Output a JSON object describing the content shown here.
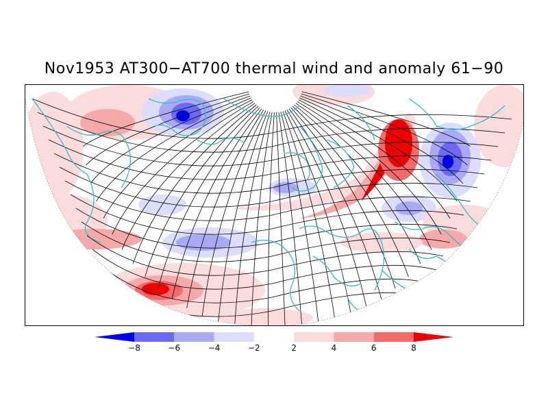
{
  "title": "Nov1953 AT300−AT700 thermal wind and anomaly 61−90",
  "colors": {
    "coast": "#2fbfbf",
    "streamline": "#000000",
    "neg_4": "#0000ee",
    "neg_3": "#6a6af2",
    "neg_2": "#a9a9f6",
    "neg_1": "#dcdcfb",
    "zero": "#ffffff",
    "pos_1": "#fbdcdc",
    "pos_2": "#f6a9a9",
    "pos_3": "#f26a6a",
    "pos_4": "#ee0000"
  },
  "legend": {
    "tick_labels": [
      "−8",
      "−6",
      "−4",
      "−2",
      "2",
      "4",
      "6",
      "8"
    ],
    "colors": [
      "#0000ee",
      "#6a6af2",
      "#a9a9f6",
      "#dcdcfb",
      "#ffffff",
      "#fbdcdc",
      "#f6a9a9",
      "#f26a6a",
      "#ee0000"
    ]
  }
}
